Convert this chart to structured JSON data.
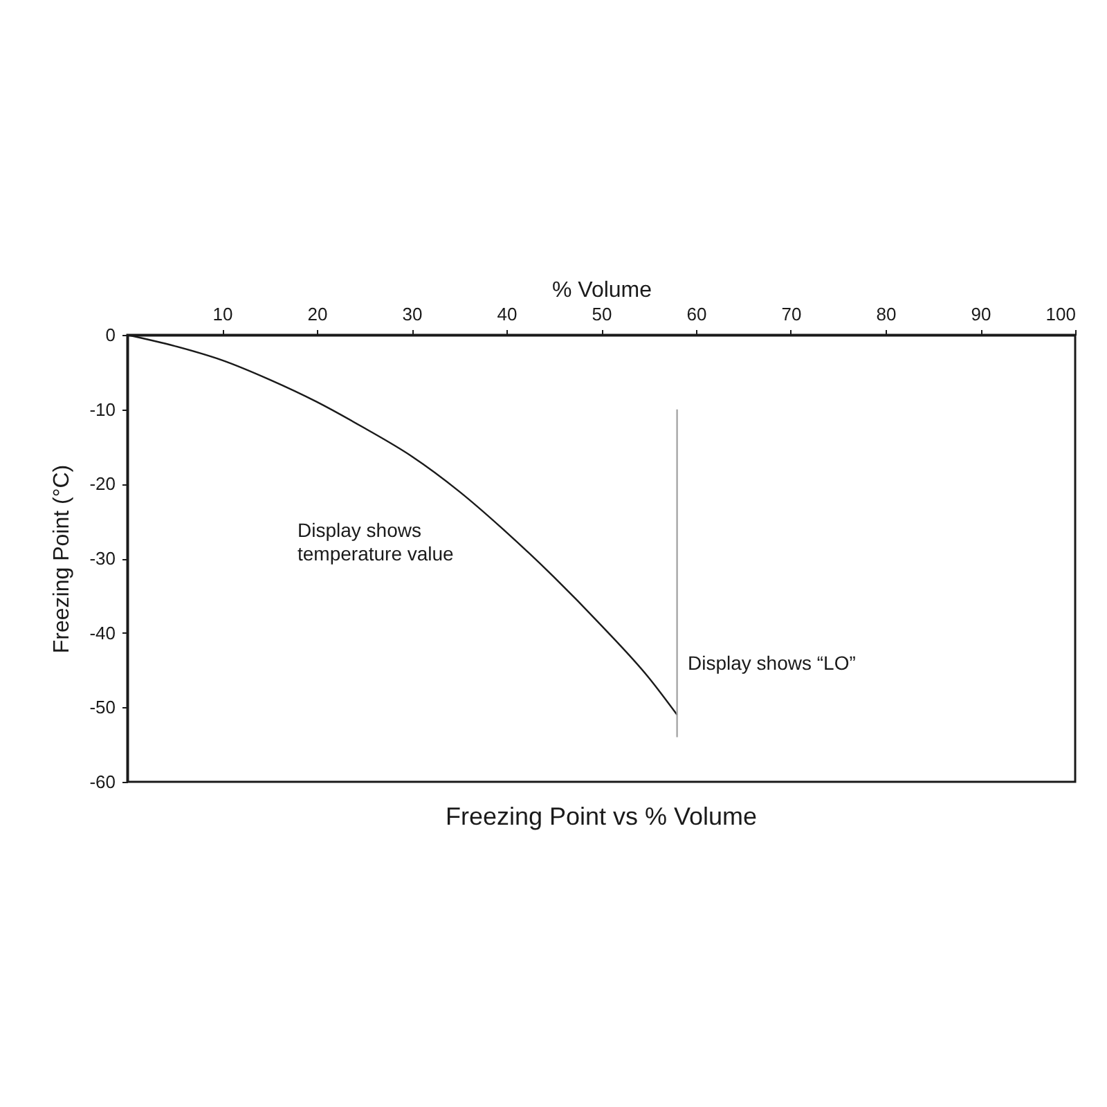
{
  "chart_data": {
    "type": "line",
    "title": "Freezing Point vs % Volume",
    "xlabel": "% Volume",
    "ylabel": "Freezing Point (°C)",
    "xlim": [
      0,
      100
    ],
    "xticks": [
      10,
      20,
      30,
      40,
      50,
      60,
      70,
      80,
      90,
      100
    ],
    "ylim": [
      -60,
      0
    ],
    "yticks": [
      0,
      -10,
      -20,
      -30,
      -40,
      -50,
      -60
    ],
    "series": [
      {
        "color": "#1a1a1a",
        "x": [
          0,
          5,
          10,
          15,
          20,
          25,
          30,
          35,
          40,
          45,
          50,
          55,
          58
        ],
        "values": [
          0,
          -1.5,
          -3.4,
          -6,
          -9,
          -12.5,
          -16.3,
          -21,
          -26.5,
          -32.5,
          -39,
          -46,
          -51
        ]
      },
      {
        "color": "#a6a6a6",
        "x": [
          58,
          58
        ],
        "values": [
          -10,
          -54
        ]
      }
    ],
    "annotations": [
      "Display shows\ntemperature value",
      "Display shows “LO”"
    ]
  }
}
